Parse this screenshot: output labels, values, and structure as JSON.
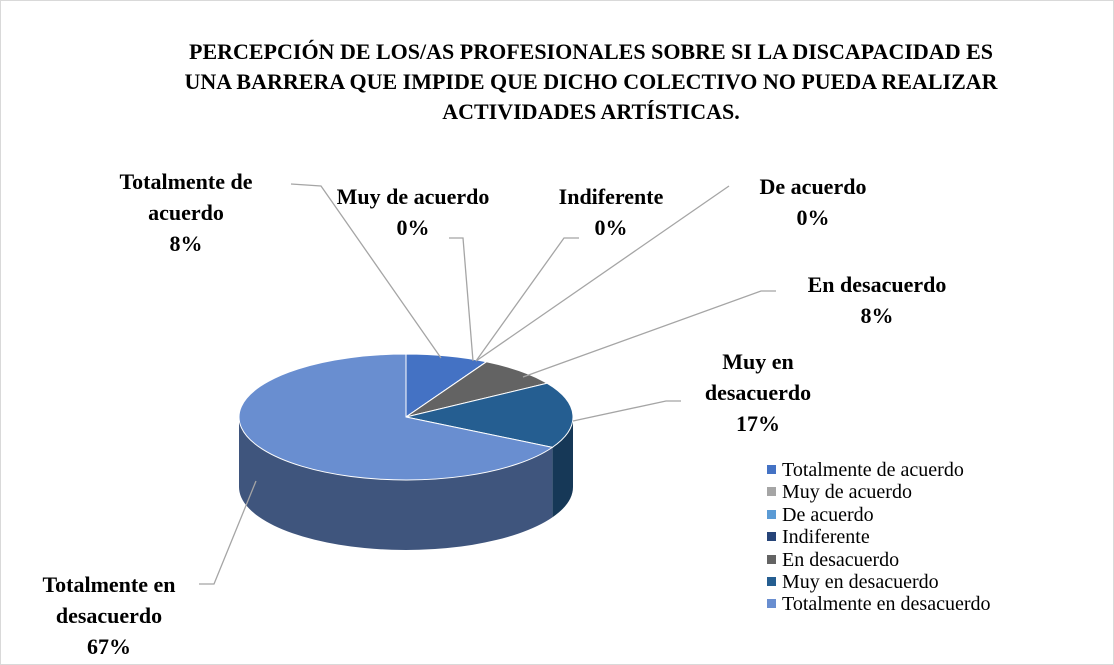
{
  "chart_data": {
    "type": "pie",
    "title": "PERCEPCIÓN DE LOS/AS PROFESIONALES SOBRE SI LA DISCAPACIDAD ES UNA BARRERA QUE IMPIDE QUE DICHO COLECTIVO NO PUEDA REALIZAR ACTIVIDADES ARTÍSTICAS.",
    "categories": [
      "Totalmente de acuerdo",
      "Muy de acuerdo",
      "De acuerdo",
      "Indiferente",
      "En desacuerdo",
      "Muy en desacuerdo",
      "Totalmente en desacuerdo"
    ],
    "values": [
      8,
      0,
      0,
      0,
      8,
      17,
      67
    ],
    "value_labels": [
      "8%",
      "0%",
      "0%",
      "0%",
      "8%",
      "17%",
      "67%"
    ],
    "colors": [
      "#4472c4",
      "#a5a5a5",
      "#5b9bd5",
      "#264478",
      "#636363",
      "#255e91",
      "#698ed0"
    ],
    "legend": "right-bottom"
  }
}
